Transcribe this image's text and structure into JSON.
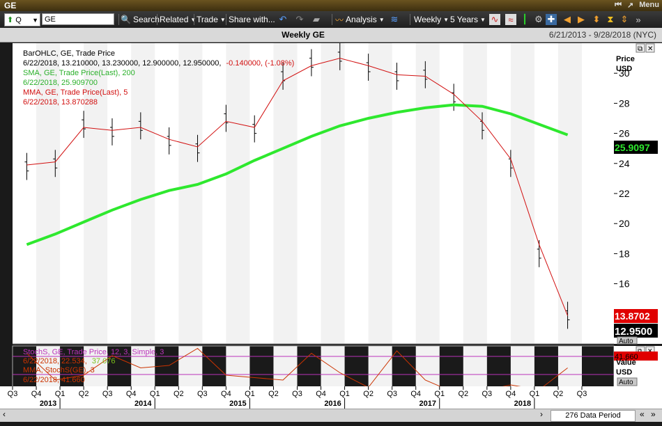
{
  "window": {
    "title": "GE",
    "menu_label": "Menu"
  },
  "toolbar": {
    "symbol_type": "Q",
    "symbol_value": "GE",
    "search_label": "Search",
    "related_label": "Related",
    "trade_label": "Trade",
    "share_label": "Share with...",
    "analysis_label": "Analysis",
    "period_label": "Weekly",
    "range_label": "5 Years"
  },
  "chart_header": {
    "title": "Weekly GE",
    "date_range": "6/21/2013 - 9/28/2018 (NYC)"
  },
  "legend": {
    "ohlc_title": "BarOHLC, GE, Trade Price",
    "ohlc_values_prefix": "6/22/2018, 13.210000, 13.230000, 12.900000, 12.950000,",
    "ohlc_change": "-0.140000, (-1.08%)",
    "sma_title": "SMA, GE, Trade Price(Last), 200",
    "sma_value": "6/22/2018, 25.909700",
    "mma_title": "MMA, GE, Trade Price(Last), 5",
    "mma_value": "6/22/2018, 13.870288"
  },
  "price_axis": {
    "title": "Price",
    "unit": "USD",
    "ticks": [
      "30",
      "28",
      "26",
      "24",
      "22",
      "20",
      "18",
      "16"
    ],
    "sma_badge": "25.9097",
    "mma_badge": "13.8702",
    "last_badge": "12.9500",
    "auto_label": "Auto"
  },
  "stoch_legend": {
    "title": "StochS, GE, Trade Price, 12, 3, Simple, 3",
    "value_prefix": "6/22/2018, 22.534,",
    "value_second": "37.076",
    "mma_title": "MMA, StochS(GE), 3",
    "mma_value": "6/22/2018, 41.660"
  },
  "stoch_axis": {
    "badge": "41.660",
    "title": "Value",
    "unit": "USD",
    "auto_label": "Auto"
  },
  "time_axis": {
    "quarters": [
      "Q3",
      "Q4",
      "Q1",
      "Q2",
      "Q3",
      "Q4",
      "Q1",
      "Q2",
      "Q3",
      "Q4",
      "Q1",
      "Q2",
      "Q3",
      "Q4",
      "Q1",
      "Q2",
      "Q3",
      "Q4",
      "Q1",
      "Q2",
      "Q3",
      "Q4",
      "Q1",
      "Q2",
      "Q3"
    ],
    "years": [
      "2013",
      "2014",
      "2015",
      "2016",
      "2017",
      "2018"
    ]
  },
  "footer": {
    "data_period": "276 Data Period"
  },
  "colors": {
    "sma": "#2ee82e",
    "mma": "#d21010",
    "stoch_k": "#cc3300",
    "stoch_line": "#bb33bb",
    "badge_mma": "#e00000",
    "badge_last": "#000000"
  },
  "chart_data": {
    "type": "line",
    "x": [
      "2013-Q3",
      "2013-Q4",
      "2014-Q1",
      "2014-Q2",
      "2014-Q3",
      "2014-Q4",
      "2015-Q1",
      "2015-Q2",
      "2015-Q3",
      "2015-Q4",
      "2016-Q1",
      "2016-Q2",
      "2016-Q3",
      "2016-Q4",
      "2017-Q1",
      "2017-Q2",
      "2017-Q3",
      "2017-Q4",
      "2018-Q1",
      "2018-Q2"
    ],
    "series": [
      {
        "name": "BarOHLC, GE, Trade Price",
        "values": [
          23.8,
          24.0,
          26.6,
          26.1,
          26.5,
          25.5,
          25.0,
          27.0,
          26.3,
          29.8,
          30.7,
          31.1,
          30.4,
          29.8,
          29.9,
          28.4,
          26.5,
          24.0,
          18.0,
          13.9
        ]
      },
      {
        "name": "SMA, GE, Trade Price(Last), 200",
        "values": [
          18.6,
          19.3,
          20.1,
          20.9,
          21.6,
          22.2,
          22.6,
          23.3,
          24.2,
          25.0,
          25.8,
          26.5,
          27.0,
          27.4,
          27.7,
          27.9,
          27.8,
          27.3,
          26.6,
          25.9
        ]
      },
      {
        "name": "MMA, GE, Trade Price(Last), 5",
        "values": [
          23.9,
          24.1,
          26.4,
          26.2,
          26.4,
          25.6,
          25.1,
          26.8,
          26.4,
          29.5,
          30.5,
          31.0,
          30.5,
          29.9,
          29.8,
          28.6,
          26.8,
          24.3,
          18.6,
          13.87
        ]
      }
    ],
    "ylim": [
      12,
      32
    ]
  },
  "stoch_data": {
    "k": [
      85,
      30,
      40,
      80,
      55,
      60,
      95,
      40,
      35,
      30,
      85,
      45,
      15,
      90,
      30,
      5,
      8,
      20,
      10,
      55
    ],
    "upper": 80,
    "lower": 20,
    "ylim": [
      0,
      100
    ]
  }
}
